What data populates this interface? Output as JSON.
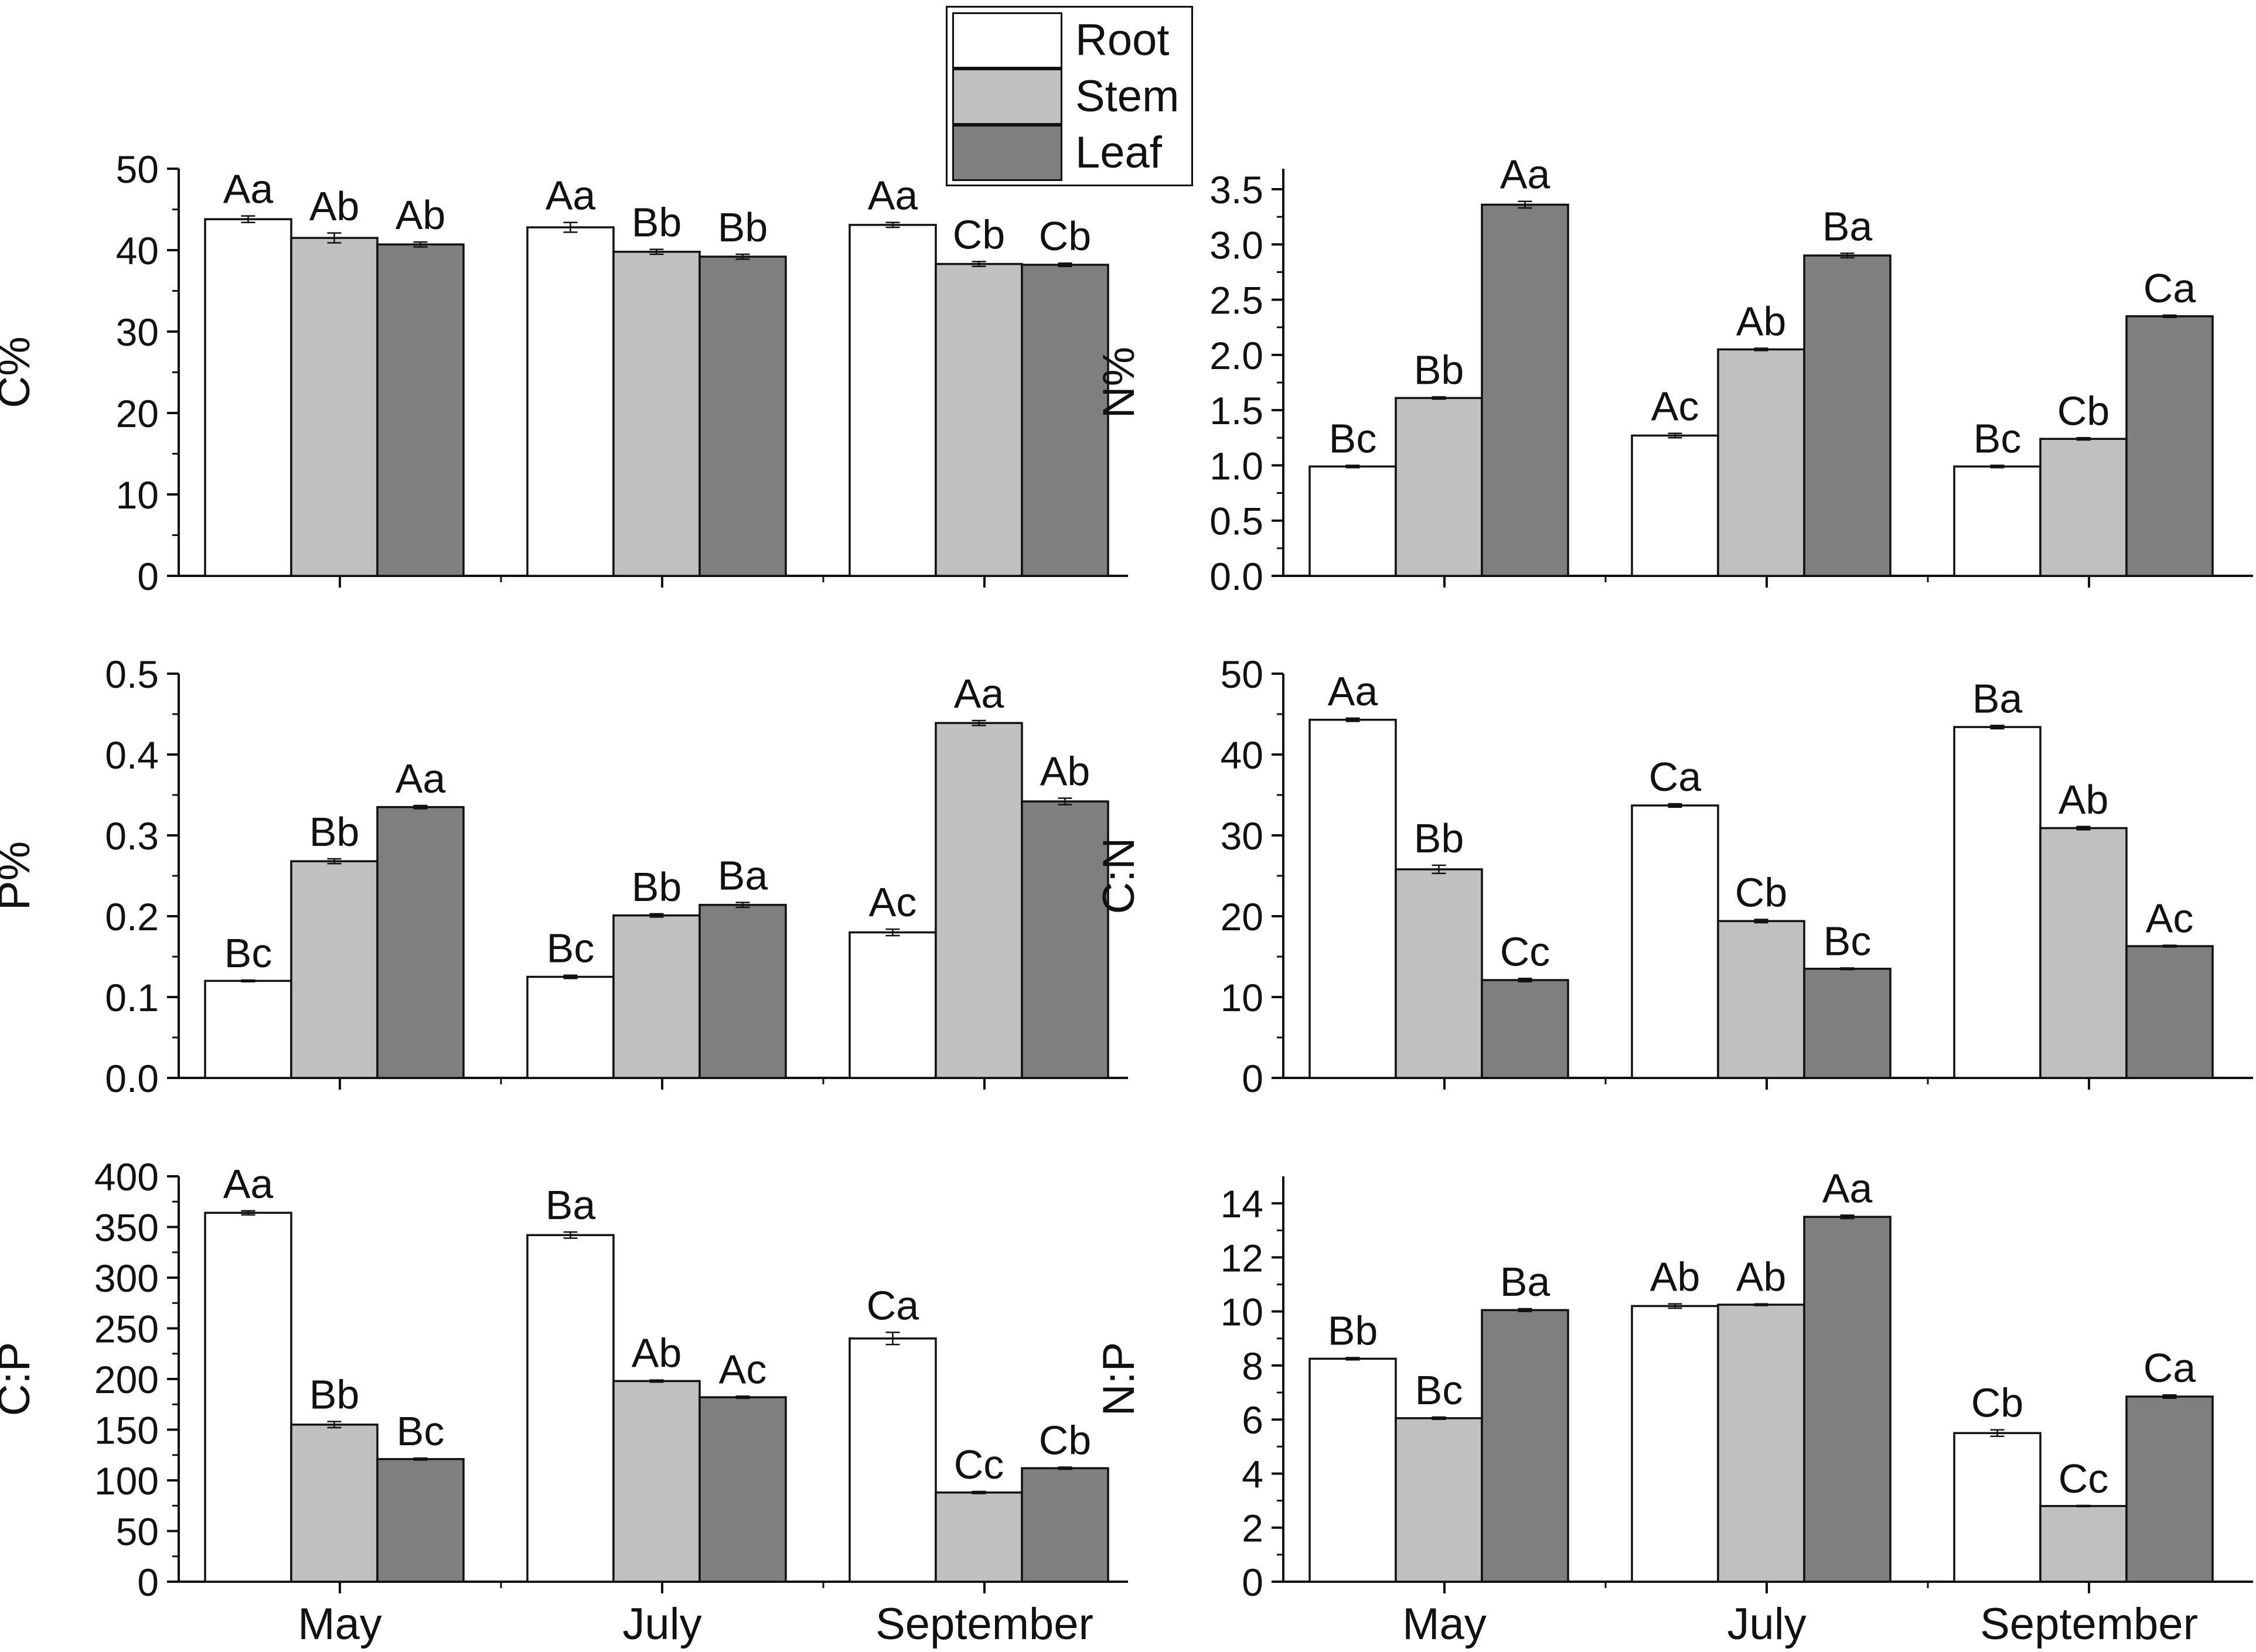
{
  "colors": {
    "Root": "#ffffff",
    "Stem": "#c0c0c0",
    "Leaf": "#7f7f7f",
    "axis": "#111111"
  },
  "legend": {
    "items": [
      {
        "name": "Root",
        "color": "#ffffff"
      },
      {
        "name": "Stem",
        "color": "#c0c0c0"
      },
      {
        "name": "Leaf",
        "color": "#7f7f7f"
      }
    ]
  },
  "chart_data": [
    {
      "type": "bar",
      "ylabel": "C%",
      "ylim": [
        0,
        50
      ],
      "yticks": [
        "0",
        "10",
        "20",
        "30",
        "40",
        "50"
      ],
      "categories": [
        "May",
        "July",
        "September"
      ],
      "series": [
        {
          "name": "Root",
          "values": [
            43.8,
            42.8,
            43.1
          ],
          "errors": [
            0.4,
            0.6,
            0.3
          ],
          "labels": [
            "Aa",
            "Aa",
            "Aa"
          ]
        },
        {
          "name": "Stem",
          "values": [
            41.5,
            39.8,
            38.3
          ],
          "errors": [
            0.6,
            0.3,
            0.3
          ],
          "labels": [
            "Ab",
            "Bb",
            "Cb"
          ]
        },
        {
          "name": "Leaf",
          "values": [
            40.7,
            39.2,
            38.2
          ],
          "errors": [
            0.3,
            0.3,
            0.2
          ],
          "labels": [
            "Ab",
            "Bb",
            "Cb"
          ]
        }
      ]
    },
    {
      "type": "bar",
      "ylabel": "N%",
      "ylim": [
        0,
        3.5
      ],
      "yticks": [
        "0.0",
        "0.5",
        "1.0",
        "1.5",
        "2.0",
        "2.5",
        "3.0",
        "3.5"
      ],
      "categories": [
        "May",
        "July",
        "September"
      ],
      "series": [
        {
          "name": "Root",
          "values": [
            0.99,
            1.27,
            0.99
          ],
          "errors": [
            0.01,
            0.02,
            0.01
          ],
          "labels": [
            "Bc",
            "Ac",
            "Bc"
          ]
        },
        {
          "name": "Stem",
          "values": [
            1.61,
            2.05,
            1.24
          ],
          "errors": [
            0.01,
            0.01,
            0.01
          ],
          "labels": [
            "Bb",
            "Ab",
            "Cb"
          ]
        },
        {
          "name": "Leaf",
          "values": [
            3.36,
            2.9,
            2.35
          ],
          "errors": [
            0.03,
            0.02,
            0.01
          ],
          "labels": [
            "Aa",
            "Ba",
            "Ca"
          ]
        }
      ]
    },
    {
      "type": "bar",
      "ylabel": "P%",
      "ylim": [
        0,
        0.5
      ],
      "yticks": [
        "0.0",
        "0.1",
        "0.2",
        "0.3",
        "0.4",
        "0.5"
      ],
      "categories": [
        "May",
        "July",
        "September"
      ],
      "series": [
        {
          "name": "Root",
          "values": [
            0.12,
            0.125,
            0.18
          ],
          "errors": [
            0.001,
            0.002,
            0.004
          ],
          "labels": [
            "Bc",
            "Bc",
            "Ac"
          ]
        },
        {
          "name": "Stem",
          "values": [
            0.268,
            0.201,
            0.439
          ],
          "errors": [
            0.003,
            0.002,
            0.003
          ],
          "labels": [
            "Bb",
            "Bb",
            "Aa"
          ]
        },
        {
          "name": "Leaf",
          "values": [
            0.335,
            0.214,
            0.342
          ],
          "errors": [
            0.002,
            0.003,
            0.004
          ],
          "labels": [
            "Aa",
            "Ba",
            "Ab"
          ]
        }
      ]
    },
    {
      "type": "bar",
      "ylabel": "C:N",
      "ylim": [
        0,
        50
      ],
      "yticks": [
        "0",
        "10",
        "20",
        "30",
        "40",
        "50"
      ],
      "categories": [
        "May",
        "July",
        "September"
      ],
      "series": [
        {
          "name": "Root",
          "values": [
            44.3,
            33.7,
            43.4
          ],
          "errors": [
            0.2,
            0.2,
            0.2
          ],
          "labels": [
            "Aa",
            "Ca",
            "Ba"
          ]
        },
        {
          "name": "Stem",
          "values": [
            25.8,
            19.4,
            30.9
          ],
          "errors": [
            0.5,
            0.2,
            0.2
          ],
          "labels": [
            "Bb",
            "Cb",
            "Ab"
          ]
        },
        {
          "name": "Leaf",
          "values": [
            12.1,
            13.5,
            16.3
          ],
          "errors": [
            0.2,
            0.1,
            0.1
          ],
          "labels": [
            "Cc",
            "Bc",
            "Ac"
          ]
        }
      ]
    },
    {
      "type": "bar",
      "ylabel": "C:P",
      "ylim": [
        0,
        400
      ],
      "yticks": [
        "0",
        "50",
        "100",
        "150",
        "200",
        "250",
        "300",
        "350",
        "400"
      ],
      "categories": [
        "May",
        "July",
        "September"
      ],
      "series": [
        {
          "name": "Root",
          "values": [
            364,
            342,
            240
          ],
          "errors": [
            2,
            3,
            6
          ],
          "labels": [
            "Aa",
            "Ba",
            "Ca"
          ]
        },
        {
          "name": "Stem",
          "values": [
            155,
            198,
            88
          ],
          "errors": [
            3,
            1,
            1
          ],
          "labels": [
            "Bb",
            "Ab",
            "Cc"
          ]
        },
        {
          "name": "Leaf",
          "values": [
            121,
            182,
            112
          ],
          "errors": [
            1,
            1,
            1
          ],
          "labels": [
            "Bc",
            "Ac",
            "Cb"
          ]
        }
      ]
    },
    {
      "type": "bar",
      "ylabel": "N:P",
      "ylim": [
        0,
        15
      ],
      "yticks": [
        "0",
        "2",
        "4",
        "6",
        "8",
        "10",
        "12",
        "14"
      ],
      "categories": [
        "May",
        "July",
        "September"
      ],
      "series": [
        {
          "name": "Root",
          "values": [
            8.25,
            10.2,
            5.5
          ],
          "errors": [
            0.04,
            0.08,
            0.12
          ],
          "labels": [
            "Bb",
            "Ab",
            "Cb"
          ]
        },
        {
          "name": "Stem",
          "values": [
            6.05,
            10.25,
            2.8
          ],
          "errors": [
            0.04,
            0.03,
            0.02
          ],
          "labels": [
            "Bc",
            "Ab",
            "Cc"
          ]
        },
        {
          "name": "Leaf",
          "values": [
            10.05,
            13.5,
            6.85
          ],
          "errors": [
            0.05,
            0.06,
            0.06
          ],
          "labels": [
            "Ba",
            "Aa",
            "Ca"
          ]
        }
      ]
    }
  ]
}
